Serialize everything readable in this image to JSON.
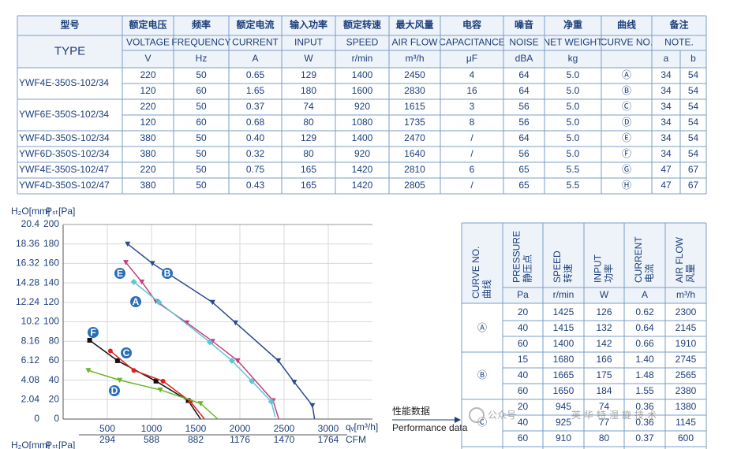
{
  "spec_table": {
    "header_cn": [
      "型号",
      "额定电压",
      "频率",
      "额定电流",
      "输入功率",
      "额定转速",
      "最大风量",
      "电容",
      "噪音",
      "净重",
      "曲线",
      "备注"
    ],
    "header_en": [
      "TYPE",
      "VOLTAGE",
      "FREQUENCY",
      "CURRENT",
      "INPUT",
      "SPEED",
      "AIR FLOW",
      "CAPACITANCE",
      "NOISE",
      "NET WEIGHT",
      "CURVE NO.",
      "NOTE."
    ],
    "units": [
      "V",
      "Hz",
      "A",
      "W",
      "r/min",
      "m³/h",
      "μF",
      "dBA",
      "kg"
    ],
    "note_sub": [
      "a",
      "b"
    ],
    "rows": [
      [
        "YWF4E-350S-102/34",
        "220",
        "50",
        "0.65",
        "129",
        "1400",
        "2450",
        "4",
        "64",
        "5.0",
        "Ⓐ",
        "34",
        "54"
      ],
      [
        null,
        "120",
        "60",
        "1.65",
        "180",
        "1600",
        "2830",
        "16",
        "64",
        "5.0",
        "Ⓑ",
        "34",
        "54"
      ],
      [
        "YWF6E-350S-102/34",
        "220",
        "50",
        "0.37",
        "74",
        "920",
        "1615",
        "3",
        "56",
        "5.0",
        "Ⓒ",
        "34",
        "54"
      ],
      [
        null,
        "120",
        "60",
        "0.68",
        "80",
        "1080",
        "1735",
        "8",
        "56",
        "5.0",
        "Ⓓ",
        "34",
        "54"
      ],
      [
        "YWF4D-350S-102/34",
        "380",
        "50",
        "0.40",
        "129",
        "1400",
        "2470",
        "/",
        "64",
        "5.0",
        "Ⓔ",
        "34",
        "54"
      ],
      [
        "YWF6D-350S-102/34",
        "380",
        "50",
        "0.32",
        "80",
        "920",
        "1640",
        "/",
        "56",
        "5.0",
        "Ⓕ",
        "34",
        "54"
      ],
      [
        "YWF4E-350S-102/47",
        "220",
        "50",
        "0.75",
        "165",
        "1420",
        "2810",
        "6",
        "65",
        "5.5",
        "Ⓖ",
        "47",
        "67"
      ],
      [
        "YWF4D-350S-102/47",
        "380",
        "50",
        "0.43",
        "165",
        "1420",
        "2805",
        "/",
        "65",
        "5.5",
        "Ⓗ",
        "47",
        "67"
      ]
    ]
  },
  "chart_data": {
    "type": "line",
    "y_label": "Pₛₜ[Pa]",
    "y2_label": "H₂O[mm]",
    "x_label": "qᵥ[m³/h]",
    "x2_label": "CFM",
    "xlim": [
      0,
      3500
    ],
    "xticks": [
      500,
      1000,
      1500,
      2000,
      2500,
      3000
    ],
    "x2lim": [
      0,
      2058
    ],
    "x2ticks": [
      294,
      588,
      882,
      1176,
      1470,
      1764
    ],
    "ylim": [
      0,
      200
    ],
    "yticks": [
      0,
      20,
      40,
      60,
      80,
      100,
      120,
      140,
      160,
      180,
      200
    ],
    "y2lim": [
      0,
      20.4
    ],
    "y2ticks": [
      0,
      2.04,
      4.08,
      6.12,
      8.16,
      10.2,
      12.24,
      14.28,
      16.32,
      18.36,
      20.4
    ],
    "grid": true,
    "series": [
      {
        "name": "B",
        "color": "#2b4a8c",
        "marker": "triangle",
        "x": [
          730,
          1010,
          1690,
          1950,
          2435,
          2615,
          2820,
          2845
        ],
        "values": [
          180,
          160,
          120,
          99,
          60,
          38,
          14,
          0
        ]
      },
      {
        "name": "E",
        "color": "#c2407e",
        "marker": "triangle",
        "x": [
          710,
          890,
          1050,
          1400,
          1690,
          1975,
          2375,
          2440
        ],
        "values": [
          161,
          141,
          121,
          99,
          80,
          60,
          19,
          0
        ]
      },
      {
        "name": "A",
        "color": "#5cc6d6",
        "marker": "diamond",
        "x": [
          800,
          1085,
          1660,
          1910,
          2135,
          2355,
          2400
        ],
        "values": [
          141,
          120,
          79,
          60,
          39,
          18,
          2
        ]
      },
      {
        "name": "F",
        "color": "#111111",
        "marker": "square",
        "x": [
          300,
          615,
          1050,
          1415,
          1555
        ],
        "values": [
          81,
          60,
          39,
          19,
          0
        ]
      },
      {
        "name": "C",
        "color": "#e02020",
        "marker": "circle",
        "x": [
          535,
          800,
          1130,
          1440,
          1600
        ],
        "values": [
          70,
          50,
          39,
          18,
          0
        ]
      },
      {
        "name": "D",
        "color": "#6ab52a",
        "marker": "triangle",
        "x": [
          285,
          640,
          1100,
          1555,
          1750
        ],
        "values": [
          50,
          40,
          30,
          16,
          0
        ]
      }
    ]
  },
  "perf_note": {
    "cn": "性能数据",
    "en": "Performance data"
  },
  "perf_table": {
    "headers": [
      [
        "CURVE NO.",
        "曲线"
      ],
      [
        "PRESSURE",
        "静压点"
      ],
      [
        "SPEED",
        "转速"
      ],
      [
        "INPUT",
        "功率"
      ],
      [
        "CURRENT",
        "电流"
      ],
      [
        "AIR FLOW",
        "风量"
      ]
    ],
    "units": [
      "Pa",
      "r/min",
      "W",
      "A",
      "m³/h"
    ],
    "groups": [
      {
        "curve": "Ⓐ",
        "rows": [
          [
            "20",
            "1425",
            "126",
            "0.62",
            "2300"
          ],
          [
            "40",
            "1415",
            "132",
            "0.64",
            "2145"
          ],
          [
            "60",
            "1400",
            "142",
            "0.66",
            "1910"
          ]
        ]
      },
      {
        "curve": "Ⓑ",
        "rows": [
          [
            "15",
            "1680",
            "166",
            "1.40",
            "2745"
          ],
          [
            "40",
            "1665",
            "175",
            "1.48",
            "2565"
          ],
          [
            "60",
            "1650",
            "184",
            "1.55",
            "2380"
          ]
        ]
      },
      {
        "curve": "Ⓒ",
        "rows": [
          [
            "20",
            "945",
            "74",
            "0.36",
            "1380"
          ],
          [
            "40",
            "925",
            "77",
            "0.36",
            "1145"
          ],
          [
            "60",
            "910",
            "80",
            "0.37",
            "600"
          ]
        ]
      }
    ]
  },
  "watermark": {
    "account": "公众号",
    "name": "英华特湿旋技术"
  }
}
